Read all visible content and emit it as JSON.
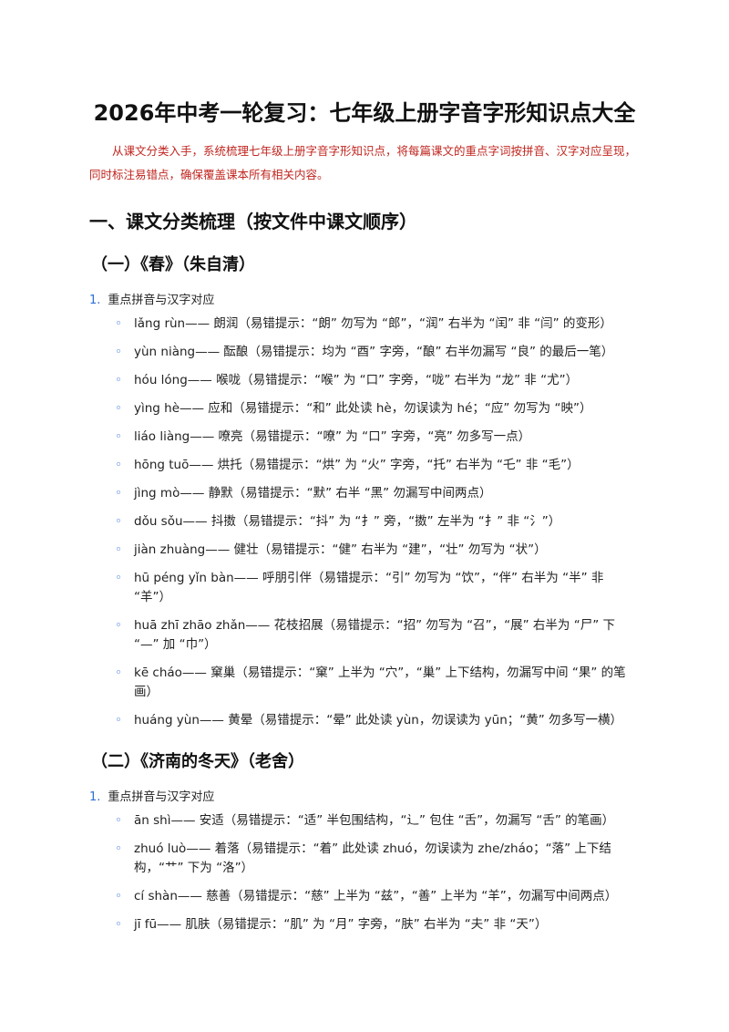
{
  "title": "2026年中考一轮复习：七年级上册字音字形知识点大全",
  "intro": "从课文分类入手，系统梳理七年级上册字音字形知识点，将每篇课文的重点字词按拼音、汉字对应呈现，同时标注易错点，确保覆盖课本所有相关内容。",
  "part_heading": "一、课文分类梳理（按文件中课文顺序）",
  "sections": [
    {
      "heading": "（一）《春》（朱自清）",
      "list_number": "1.",
      "list_title": "重点拼音与汉字对应",
      "items": [
        "lǎng rùn—— 朗润（易错提示：“朗” 勿写为 “郎”，“润” 右半为 “闰” 非 “闫” 的变形）",
        "yùn niàng—— 酝酿（易错提示：均为 “酉” 字旁，“酿” 右半勿漏写 “良” 的最后一笔）",
        "hóu lóng—— 喉咙（易错提示：“喉” 为 “口” 字旁，“咙” 右半为 “龙” 非 “尤”）",
        "yìng hè—— 应和（易错提示：“和” 此处读 hè，勿误读为 hé；“应” 勿写为 “映”）",
        "liáo liàng—— 嘹亮（易错提示：“嘹” 为 “口” 字旁，“亮” 勿多写一点）",
        "hōng tuō—— 烘托（易错提示：“烘” 为 “火” 字旁，“托” 右半为 “乇” 非 “毛”）",
        "jìng mò—— 静默（易错提示：“默” 右半 “黑” 勿漏写中间两点）",
        "dǒu sǒu—— 抖擞（易错提示：“抖” 为 “扌” 旁，“擞” 左半为 “扌” 非 “氵”）",
        "jiàn zhuàng—— 健壮（易错提示：“健” 右半为 “建”，“壮” 勿写为 “状”）",
        "hū péng yǐn bàn—— 呼朋引伴（易错提示：“引” 勿写为 “饮”，“伴” 右半为 “半” 非 “羊”）",
        "huā zhī zhāo zhǎn—— 花枝招展（易错提示：“招” 勿写为 “召”，“展” 右半为 “尸” 下 “—” 加 “巾”）",
        "kē cháo—— 窠巢（易错提示：“窠” 上半为 “穴”，“巢” 上下结构，勿漏写中间 “果” 的笔画）",
        "huáng yùn—— 黄晕（易错提示：“晕” 此处读 yùn，勿误读为 yūn；“黄” 勿多写一横）"
      ]
    },
    {
      "heading": "（二）《济南的冬天》（老舍）",
      "list_number": "1.",
      "list_title": "重点拼音与汉字对应",
      "items": [
        "ān shì—— 安适（易错提示：“适” 半包围结构，“辶” 包住 “舌”，勿漏写 “舌” 的笔画）",
        "zhuó luò—— 着落（易错提示：“着” 此处读 zhuó，勿误读为 zhe/zháo；“落” 上下结构，“艹” 下为 “洛”）",
        "cí shàn—— 慈善（易错提示：“慈” 上半为 “兹”，“善” 上半为 “羊”，勿漏写中间两点）",
        "jī fū—— 肌肤（易错提示：“肌” 为 “月” 字旁，“肤” 右半为 “夫” 非 “天”）"
      ]
    }
  ]
}
